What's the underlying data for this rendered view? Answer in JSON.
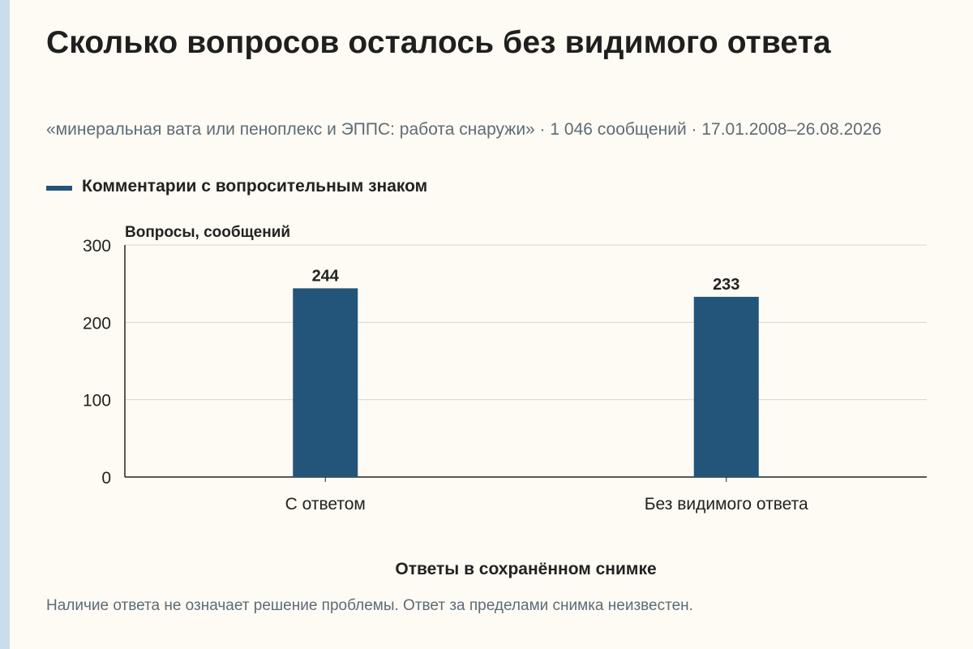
{
  "page": {
    "title": "Сколько вопросов осталось без видимого ответа",
    "subtitle": "«минеральная вата или пеноплекс и ЭППС: работа снаружи» · 1 046 сообщений · 17.01.2008–26.08.2026",
    "footer_note": "Наличие ответа не означает решение проблемы. Ответ за пределами снимка неизвестен."
  },
  "colors": {
    "bar": "#23557a",
    "background": "#fdfbf3",
    "grid": "#d6d6d6",
    "axis": "#222222"
  },
  "chart_data": {
    "type": "bar",
    "title": "Сколько вопросов осталось без видимого ответа",
    "xlabel": "Ответы в сохранённом снимке",
    "ylabel": "Вопросы, сообщений",
    "categories": [
      "С ответом",
      "Без видимого ответа"
    ],
    "series": [
      {
        "name": "Комментарии с вопросительным знаком",
        "values": [
          244,
          233
        ]
      }
    ],
    "ylim": [
      0,
      300
    ],
    "yticks": [
      0,
      100,
      200,
      300
    ],
    "grid": true,
    "legend_position": "top-left",
    "data_labels": true
  }
}
